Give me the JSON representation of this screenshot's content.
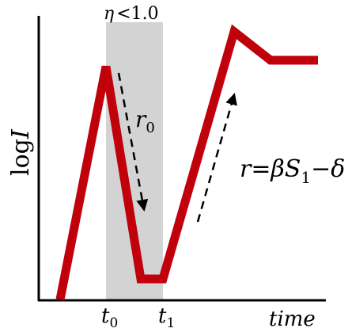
{
  "labels": {
    "eta_symbol": "η",
    "eta_rest": "<1.0",
    "y_axis_main": "log",
    "y_axis_var": "I",
    "x_axis": "time",
    "t0_base": "t",
    "t0_sub": "0",
    "t1_base": "t",
    "t1_sub": "1",
    "r0_base": "r",
    "r0_sub": "0",
    "formula_r": "r",
    "formula_eq": "=",
    "formula_beta": "β",
    "formula_S": "S",
    "formula_sub": "1",
    "formula_minus": "−",
    "formula_delta": "δ"
  },
  "colors": {
    "curve": "#c0000b",
    "shade": "#d3d3d3",
    "axis": "#000000",
    "arrow": "#000000"
  }
}
